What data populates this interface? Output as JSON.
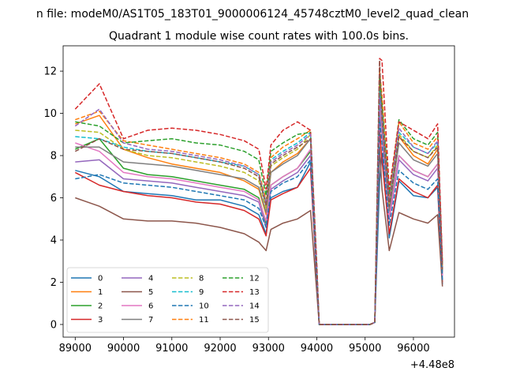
{
  "figure": {
    "suptitle": "n file: modeM0/AS1T05_183T01_9000006124_45748cztM0_level2_quad_clean",
    "title": "Quadrant 1 module wise count rates with 100.0s bins."
  },
  "chart_data": {
    "type": "line",
    "title": "Quadrant 1 module wise count rates with 100.0s bins.",
    "xlabel": "",
    "ylabel": "",
    "x_offset_label": "+4.48e8",
    "xlim": [
      88750,
      96850
    ],
    "ylim": [
      -0.6,
      13.2
    ],
    "xticks": [
      89000,
      90000,
      91000,
      92000,
      93000,
      94000,
      95000,
      96000
    ],
    "xtick_labels": [
      "89000",
      "90000",
      "91000",
      "92000",
      "93000",
      "94000",
      "95000",
      "96000"
    ],
    "yticks": [
      0,
      2,
      4,
      6,
      8,
      10,
      12
    ],
    "ytick_labels": [
      "0",
      "2",
      "4",
      "6",
      "8",
      "10",
      "12"
    ],
    "legend_loc": "lower-left",
    "legend_ncol": 4,
    "colors": [
      "#1f77b4",
      "#ff7f0e",
      "#2ca02c",
      "#d62728",
      "#9467bd",
      "#8c564b",
      "#e377c2",
      "#7f7f7f",
      "#bcbd22",
      "#17becf",
      "#1f77b4",
      "#ff7f0e",
      "#2ca02c",
      "#d62728",
      "#9467bd",
      "#8c564b"
    ],
    "dashed": [
      false,
      false,
      false,
      false,
      false,
      false,
      false,
      false,
      true,
      true,
      true,
      true,
      true,
      true,
      true,
      true
    ],
    "series": [
      {
        "name": "0",
        "x": [
          89000,
          89500,
          90000,
          90500,
          91000,
          91500,
          92000,
          92500,
          92800,
          92950,
          93050,
          93300,
          93600,
          93870,
          94000,
          94050,
          94100,
          95100,
          95200,
          95300,
          95350,
          95500,
          95700,
          96000,
          96300,
          96500,
          96600
        ],
        "values": [
          7.3,
          7.0,
          6.3,
          6.2,
          6.1,
          5.9,
          5.9,
          5.6,
          5.2,
          4.3,
          6.0,
          6.3,
          6.5,
          7.7,
          2.0,
          0.0,
          0.0,
          0.0,
          0.1,
          6.8,
          8.1,
          4.1,
          6.8,
          6.1,
          6.0,
          6.5,
          1.9
        ]
      },
      {
        "name": "1",
        "x": [
          89000,
          89500,
          90000,
          90500,
          91000,
          91500,
          92000,
          92500,
          92800,
          92950,
          93050,
          93300,
          93600,
          93870,
          94000,
          94050,
          94100,
          95100,
          95200,
          95300,
          95350,
          95500,
          95700,
          96000,
          96300,
          96500,
          96600
        ],
        "values": [
          9.5,
          9.9,
          8.3,
          7.9,
          7.6,
          7.4,
          7.2,
          6.8,
          6.4,
          5.2,
          7.2,
          7.7,
          8.1,
          8.8,
          2.5,
          0.0,
          0.0,
          0.0,
          0.1,
          11.6,
          10.3,
          5.8,
          8.9,
          8.0,
          7.6,
          8.3,
          2.6
        ]
      },
      {
        "name": "2",
        "x": [
          89000,
          89500,
          90000,
          90500,
          91000,
          91500,
          92000,
          92500,
          92800,
          92950,
          93050,
          93300,
          93600,
          93870,
          94000,
          94050,
          94100,
          95100,
          95200,
          95300,
          95350,
          95500,
          95700,
          96000,
          96300,
          96500,
          96600
        ],
        "values": [
          8.3,
          8.8,
          7.4,
          7.1,
          7.0,
          6.8,
          6.6,
          6.4,
          6.0,
          4.8,
          6.6,
          7.0,
          7.4,
          8.2,
          2.3,
          0.0,
          0.0,
          0.0,
          0.1,
          11.9,
          9.1,
          5.2,
          8.0,
          7.3,
          7.0,
          7.6,
          2.4
        ]
      },
      {
        "name": "3",
        "x": [
          89000,
          89500,
          90000,
          90500,
          91000,
          91500,
          92000,
          92500,
          92800,
          92950,
          93050,
          93300,
          93600,
          93870,
          94000,
          94050,
          94100,
          95100,
          95200,
          95300,
          95350,
          95500,
          95700,
          96000,
          96300,
          96500,
          96600
        ],
        "values": [
          7.2,
          6.6,
          6.3,
          6.1,
          6.0,
          5.8,
          5.7,
          5.4,
          5.0,
          4.2,
          5.9,
          6.2,
          6.5,
          7.4,
          2.0,
          0.0,
          0.0,
          0.0,
          0.1,
          9.2,
          7.8,
          4.3,
          6.9,
          6.3,
          6.0,
          6.6,
          2.0
        ]
      },
      {
        "name": "4",
        "x": [
          89000,
          89500,
          90000,
          90500,
          91000,
          91500,
          92000,
          92500,
          92800,
          92950,
          93050,
          93300,
          93600,
          93870,
          94000,
          94050,
          94100,
          95100,
          95200,
          95300,
          95350,
          95500,
          95700,
          96000,
          96300,
          96500,
          96600
        ],
        "values": [
          7.7,
          7.8,
          6.9,
          6.8,
          6.7,
          6.5,
          6.3,
          6.1,
          5.8,
          4.6,
          6.4,
          6.8,
          7.2,
          8.0,
          2.2,
          0.0,
          0.0,
          0.0,
          0.1,
          10.2,
          8.8,
          5.0,
          7.8,
          7.1,
          6.8,
          7.4,
          2.3
        ]
      },
      {
        "name": "5",
        "x": [
          89000,
          89500,
          90000,
          90500,
          91000,
          91500,
          92000,
          92500,
          92800,
          92950,
          93050,
          93300,
          93600,
          93870,
          94000,
          94050,
          94100,
          95100,
          95200,
          95300,
          95350,
          95500,
          95700,
          96000,
          96300,
          96500,
          96600
        ],
        "values": [
          6.0,
          5.6,
          5.0,
          4.9,
          4.9,
          4.8,
          4.6,
          4.3,
          3.9,
          3.5,
          4.5,
          4.8,
          5.0,
          5.4,
          1.5,
          0.0,
          0.0,
          0.0,
          0.1,
          8.4,
          6.4,
          3.5,
          5.3,
          5.0,
          4.8,
          5.2,
          1.8
        ]
      },
      {
        "name": "6",
        "x": [
          89000,
          89500,
          90000,
          90500,
          91000,
          91500,
          92000,
          92500,
          92800,
          92950,
          93050,
          93300,
          93600,
          93870,
          94000,
          94050,
          94100,
          95100,
          95200,
          95300,
          95350,
          95500,
          95700,
          96000,
          96300,
          96500,
          96600
        ],
        "values": [
          8.6,
          8.2,
          7.2,
          7.0,
          6.9,
          6.7,
          6.5,
          6.3,
          5.9,
          4.9,
          6.6,
          7.0,
          7.4,
          8.3,
          2.2,
          0.0,
          0.0,
          0.0,
          0.1,
          10.9,
          9.0,
          5.1,
          8.0,
          7.3,
          7.0,
          7.6,
          2.3
        ]
      },
      {
        "name": "7",
        "x": [
          89000,
          89500,
          90000,
          90500,
          91000,
          91500,
          92000,
          92500,
          92800,
          92950,
          93050,
          93300,
          93600,
          93870,
          94000,
          94050,
          94100,
          95100,
          95200,
          95300,
          95350,
          95500,
          95700,
          96000,
          96300,
          96500,
          96600
        ],
        "values": [
          8.4,
          8.4,
          7.7,
          7.6,
          7.5,
          7.3,
          7.1,
          6.9,
          6.5,
          5.3,
          7.2,
          7.6,
          8.0,
          8.8,
          2.4,
          0.0,
          0.0,
          0.0,
          0.1,
          11.3,
          9.6,
          5.4,
          8.6,
          7.8,
          7.5,
          8.1,
          2.5
        ]
      },
      {
        "name": "8",
        "x": [
          89000,
          89500,
          90000,
          90500,
          91000,
          91500,
          92000,
          92500,
          92800,
          92950,
          93050,
          93300,
          93600,
          93870,
          94000,
          94050,
          94100,
          95100,
          95200,
          95300,
          95350,
          95500,
          95700,
          96000,
          96300,
          96500,
          96600
        ],
        "values": [
          9.2,
          9.1,
          8.3,
          8.0,
          7.9,
          7.7,
          7.5,
          7.2,
          6.8,
          5.5,
          7.5,
          7.9,
          8.3,
          9.0,
          2.5,
          0.0,
          0.0,
          0.0,
          0.1,
          11.4,
          10.6,
          5.7,
          9.0,
          8.2,
          7.9,
          8.5,
          2.6
        ]
      },
      {
        "name": "9",
        "x": [
          89000,
          89500,
          90000,
          90500,
          91000,
          91500,
          92000,
          92500,
          92800,
          92950,
          93050,
          93300,
          93600,
          93870,
          94000,
          94050,
          94100,
          95100,
          95200,
          95300,
          95350,
          95500,
          95700,
          96000,
          96300,
          96500,
          96600
        ],
        "values": [
          8.9,
          8.8,
          8.4,
          8.2,
          8.1,
          7.9,
          7.7,
          7.5,
          7.1,
          5.8,
          7.8,
          8.2,
          8.6,
          9.1,
          2.6,
          0.0,
          0.0,
          0.0,
          0.1,
          11.1,
          9.9,
          5.9,
          9.1,
          8.4,
          8.1,
          8.6,
          2.7
        ]
      },
      {
        "name": "10",
        "x": [
          89000,
          89500,
          90000,
          90500,
          91000,
          91500,
          92000,
          92500,
          92800,
          92950,
          93050,
          93300,
          93600,
          93870,
          94000,
          94050,
          94100,
          95100,
          95200,
          95300,
          95350,
          95500,
          95700,
          96000,
          96300,
          96500,
          96600
        ],
        "values": [
          6.9,
          7.1,
          6.7,
          6.6,
          6.5,
          6.3,
          6.1,
          5.9,
          5.5,
          4.6,
          6.3,
          6.7,
          7.0,
          7.8,
          2.1,
          0.0,
          0.0,
          0.0,
          0.1,
          9.7,
          8.6,
          4.7,
          7.3,
          6.7,
          6.4,
          6.9,
          2.1
        ]
      },
      {
        "name": "11",
        "x": [
          89000,
          89500,
          90000,
          90500,
          91000,
          91500,
          92000,
          92500,
          92800,
          92950,
          93050,
          93300,
          93600,
          93870,
          94000,
          94050,
          94100,
          95100,
          95200,
          95300,
          95350,
          95500,
          95700,
          96000,
          96300,
          96500,
          96600
        ],
        "values": [
          9.7,
          10.1,
          8.7,
          8.5,
          8.3,
          8.1,
          7.9,
          7.6,
          7.2,
          5.9,
          7.9,
          8.4,
          8.8,
          9.2,
          2.6,
          0.0,
          0.0,
          0.0,
          0.1,
          12.0,
          10.9,
          6.0,
          9.6,
          8.6,
          8.3,
          8.9,
          2.8
        ]
      },
      {
        "name": "12",
        "x": [
          89000,
          89500,
          90000,
          90500,
          91000,
          91500,
          92000,
          92500,
          92800,
          92950,
          93050,
          93300,
          93600,
          93870,
          94000,
          94050,
          94100,
          95100,
          95200,
          95300,
          95350,
          95500,
          95700,
          96000,
          96300,
          96500,
          96600
        ],
        "values": [
          9.6,
          9.4,
          8.6,
          8.7,
          8.8,
          8.6,
          8.5,
          8.2,
          7.8,
          6.1,
          8.2,
          8.6,
          9.0,
          9.1,
          2.7,
          0.0,
          0.0,
          0.0,
          0.1,
          11.8,
          10.4,
          6.2,
          9.7,
          8.8,
          8.5,
          9.1,
          2.9
        ]
      },
      {
        "name": "13",
        "x": [
          89000,
          89500,
          90000,
          90500,
          91000,
          91500,
          92000,
          92500,
          92800,
          92950,
          93050,
          93300,
          93600,
          93870,
          94000,
          94050,
          94100,
          95100,
          95200,
          95300,
          95350,
          95500,
          95700,
          96000,
          96300,
          96500,
          96600
        ],
        "values": [
          10.2,
          11.4,
          8.8,
          9.2,
          9.3,
          9.2,
          9.0,
          8.7,
          8.3,
          6.4,
          8.5,
          9.2,
          9.6,
          9.2,
          2.9,
          0.0,
          0.0,
          0.0,
          0.1,
          12.6,
          12.5,
          6.4,
          9.6,
          9.2,
          8.8,
          9.5,
          3.0
        ]
      },
      {
        "name": "14",
        "x": [
          89000,
          89500,
          90000,
          90500,
          91000,
          91500,
          92000,
          92500,
          92800,
          92950,
          93050,
          93300,
          93600,
          93870,
          94000,
          94050,
          94100,
          95100,
          95200,
          95300,
          95350,
          95500,
          95700,
          96000,
          96300,
          96500,
          96600
        ],
        "values": [
          9.4,
          10.2,
          8.6,
          8.3,
          8.2,
          8.0,
          7.8,
          7.5,
          7.1,
          5.7,
          7.7,
          8.1,
          8.5,
          9.0,
          2.5,
          0.0,
          0.0,
          0.0,
          0.1,
          10.8,
          10.0,
          5.8,
          9.3,
          8.4,
          8.1,
          8.7,
          2.7
        ]
      },
      {
        "name": "15",
        "x": [
          89000,
          89500,
          90000,
          90500,
          91000,
          91500,
          92000,
          92500,
          92800,
          92950,
          93050,
          93300,
          93600,
          93870,
          94000,
          94050,
          94100,
          95100,
          95200,
          95300,
          95350,
          95500,
          95700,
          96000,
          96300,
          96500,
          96600
        ],
        "values": [
          8.2,
          8.8,
          8.3,
          8.2,
          8.1,
          7.9,
          7.7,
          7.4,
          7.0,
          5.6,
          7.6,
          8.0,
          8.4,
          8.8,
          2.4,
          0.0,
          0.0,
          0.0,
          0.1,
          12.5,
          9.8,
          5.6,
          8.9,
          8.2,
          7.9,
          8.4,
          2.6
        ]
      }
    ]
  }
}
